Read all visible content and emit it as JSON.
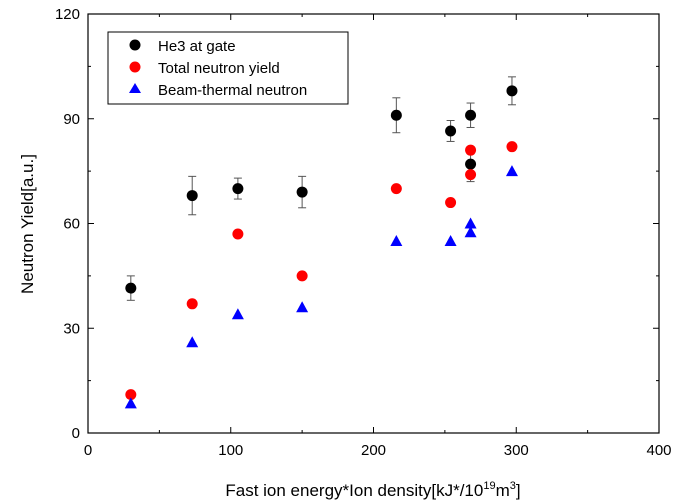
{
  "chart_data": {
    "type": "scatter",
    "xlabel": "Fast ion energy*Ion density[kJ*/10",
    "xlabel_sup1": "19",
    "xlabel_mid": "m",
    "xlabel_sup2": "3",
    "xlabel_end": "]",
    "ylabel": "Neutron Yield[a.u.]",
    "xlim": [
      0,
      400
    ],
    "ylim": [
      0,
      120
    ],
    "x_ticks": [
      0,
      100,
      200,
      300,
      400
    ],
    "y_ticks": [
      0,
      30,
      60,
      90,
      120
    ],
    "grid": false,
    "legend_position": "top-left",
    "series": [
      {
        "name": "He3 at gate",
        "color": "#000000",
        "marker": "circle",
        "points": [
          {
            "x": 30,
            "y": 41.5,
            "err": 3.5
          },
          {
            "x": 73,
            "y": 68,
            "err": 5.5
          },
          {
            "x": 105,
            "y": 70,
            "err": 3
          },
          {
            "x": 150,
            "y": 69,
            "err": 4.5
          },
          {
            "x": 216,
            "y": 91,
            "err": 5
          },
          {
            "x": 254,
            "y": 86.5,
            "err": 3
          },
          {
            "x": 268,
            "y": 91,
            "err": 3.5
          },
          {
            "x": 268,
            "y": 77,
            "err": 5
          },
          {
            "x": 297,
            "y": 98,
            "err": 4
          }
        ]
      },
      {
        "name": "Total neutron yield",
        "color": "#ff0000",
        "marker": "circle",
        "points": [
          {
            "x": 30,
            "y": 11
          },
          {
            "x": 73,
            "y": 37
          },
          {
            "x": 105,
            "y": 57
          },
          {
            "x": 150,
            "y": 45
          },
          {
            "x": 216,
            "y": 70
          },
          {
            "x": 254,
            "y": 66
          },
          {
            "x": 268,
            "y": 81
          },
          {
            "x": 268,
            "y": 74
          },
          {
            "x": 297,
            "y": 82
          }
        ]
      },
      {
        "name": "Beam-thermal neutron",
        "color": "#0000ff",
        "marker": "triangle",
        "points": [
          {
            "x": 30,
            "y": 8.5
          },
          {
            "x": 73,
            "y": 26
          },
          {
            "x": 105,
            "y": 34
          },
          {
            "x": 150,
            "y": 36
          },
          {
            "x": 216,
            "y": 55
          },
          {
            "x": 254,
            "y": 55
          },
          {
            "x": 268,
            "y": 60
          },
          {
            "x": 268,
            "y": 57.5
          },
          {
            "x": 297,
            "y": 75
          }
        ]
      }
    ]
  }
}
